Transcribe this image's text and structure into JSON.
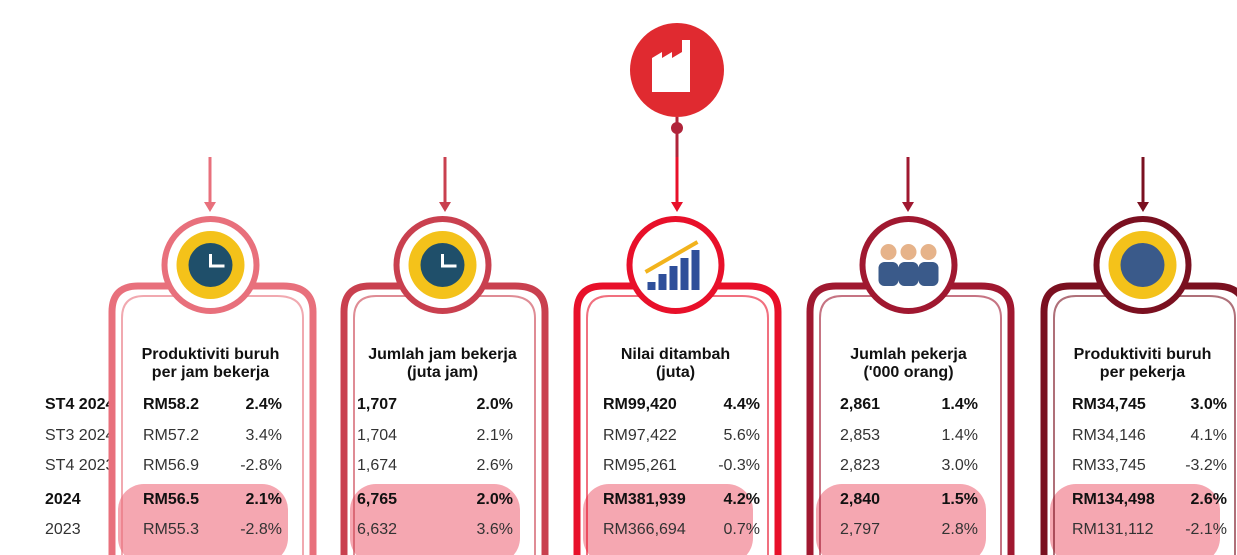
{
  "row_labels": [
    "ST4 2024",
    "ST3 2024",
    "ST4 2023",
    "2024",
    "2023"
  ],
  "columns": [
    {
      "title_lines": [
        "Produktiviti buruh",
        "per jam bekerja"
      ],
      "rows": [
        [
          "RM58.2",
          "2.4%"
        ],
        [
          "RM57.2",
          "3.4%"
        ],
        [
          "RM56.9",
          "-2.8%"
        ],
        [
          "RM56.5",
          "2.1%"
        ],
        [
          "RM55.3",
          "-2.8%"
        ]
      ]
    },
    {
      "title_lines": [
        "Jumlah jam bekerja",
        "(juta jam)"
      ],
      "rows": [
        [
          "1,707",
          "2.0%"
        ],
        [
          "1,704",
          "2.1%"
        ],
        [
          "1,674",
          "2.6%"
        ],
        [
          "6,765",
          "2.0%"
        ],
        [
          "6,632",
          "3.6%"
        ]
      ]
    },
    {
      "title_lines": [
        "Nilai ditambah",
        "(juta)"
      ],
      "rows": [
        [
          "RM99,420",
          "4.4%"
        ],
        [
          "RM97,422",
          "5.6%"
        ],
        [
          "RM95,261",
          "-0.3%"
        ],
        [
          "RM381,939",
          "4.2%"
        ],
        [
          "RM366,694",
          "0.7%"
        ]
      ]
    },
    {
      "title_lines": [
        "Jumlah pekerja",
        "('000 orang)"
      ],
      "rows": [
        [
          "2,861",
          "1.4%"
        ],
        [
          "2,853",
          "1.4%"
        ],
        [
          "2,823",
          "3.0%"
        ],
        [
          "2,840",
          "1.5%"
        ],
        [
          "2,797",
          "2.8%"
        ]
      ]
    },
    {
      "title_lines": [
        "Produktiviti buruh",
        "per pekerja"
      ],
      "rows": [
        [
          "RM34,745",
          "3.0%"
        ],
        [
          "RM34,146",
          "4.1%"
        ],
        [
          "RM33,745",
          "-3.2%"
        ],
        [
          "RM134,498",
          "2.6%"
        ],
        [
          "RM131,112",
          "-2.1%"
        ]
      ]
    }
  ]
}
